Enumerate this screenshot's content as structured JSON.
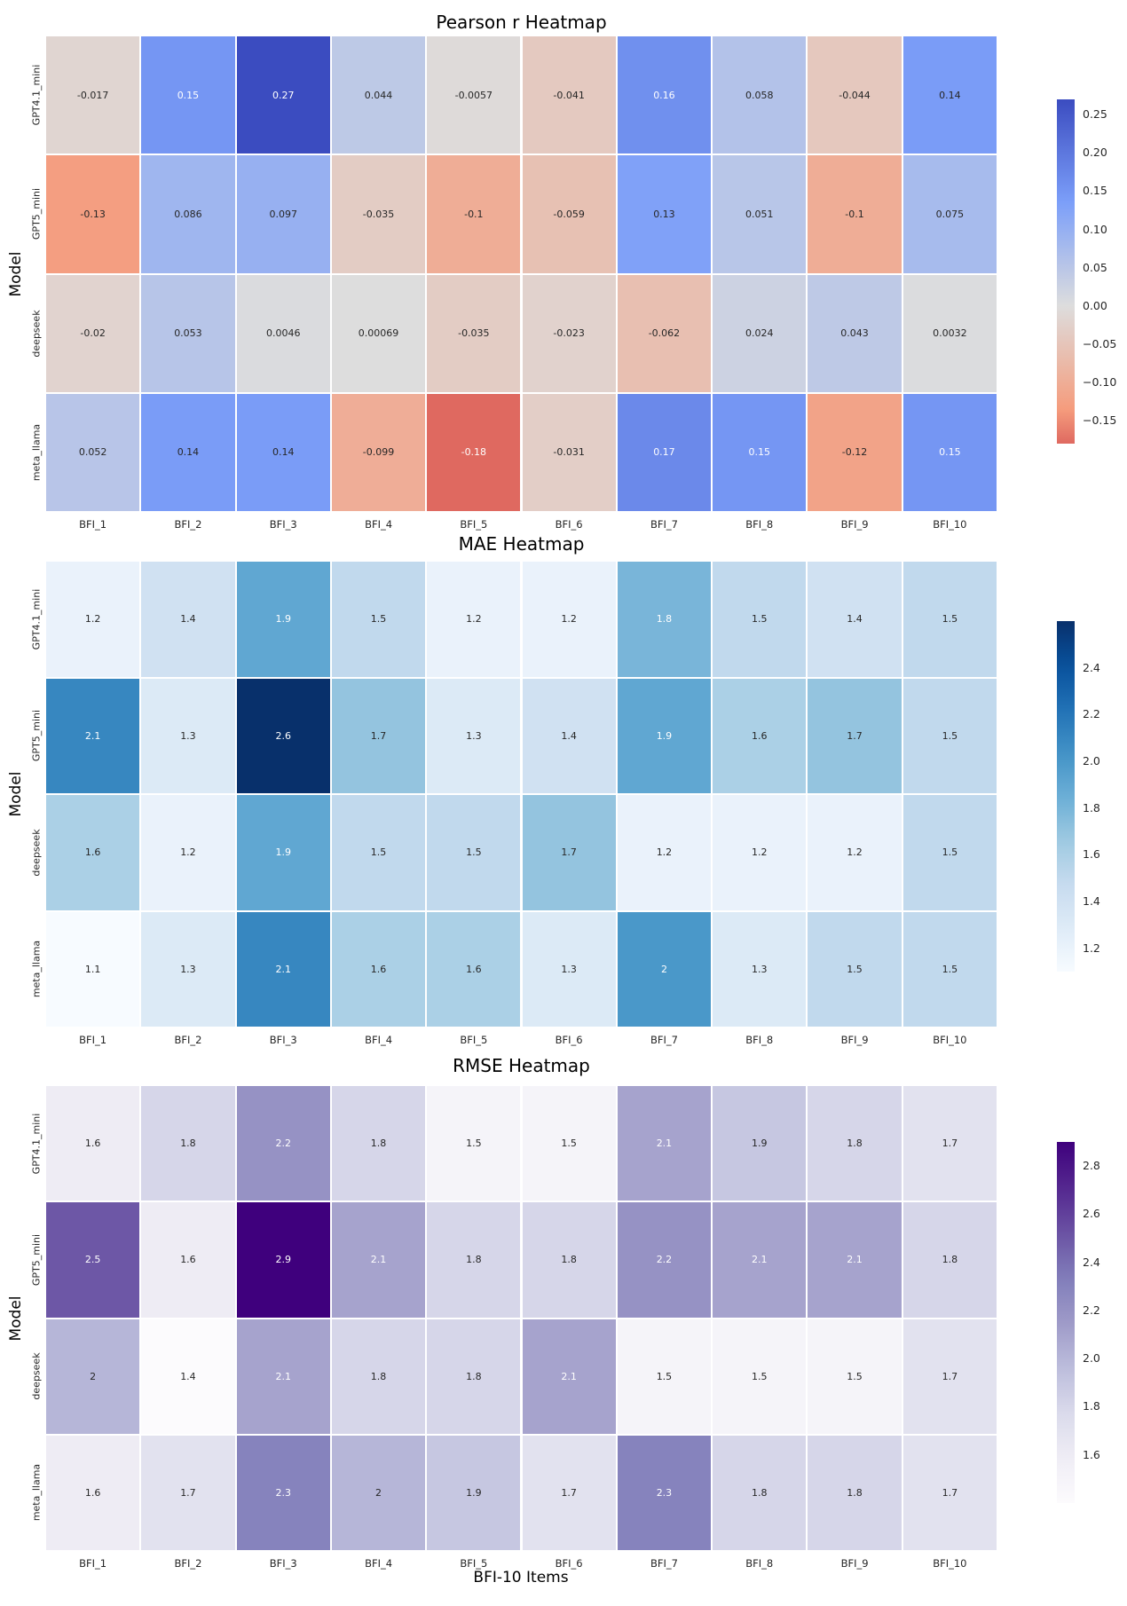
{
  "figure": {
    "ylabel": "Model",
    "xlabel": "BFI-10 Items",
    "models": [
      "GPT4.1_mini",
      "GPT5_mini",
      "deepseek",
      "meta_llama"
    ],
    "items": [
      "BFI_1",
      "BFI_2",
      "BFI_3",
      "BFI_4",
      "BFI_5",
      "BFI_6",
      "BFI_7",
      "BFI_8",
      "BFI_9",
      "BFI_10"
    ]
  },
  "chart_data": [
    {
      "type": "heatmap",
      "title": "Pearson r Heatmap",
      "rows": [
        "GPT4.1_mini",
        "GPT5_mini",
        "deepseek",
        "meta_llama"
      ],
      "columns": [
        "BFI_1",
        "BFI_2",
        "BFI_3",
        "BFI_4",
        "BFI_5",
        "BFI_6",
        "BFI_7",
        "BFI_8",
        "BFI_9",
        "BFI_10"
      ],
      "values": [
        [
          -0.017,
          0.15,
          0.27,
          0.044,
          -0.0057,
          -0.041,
          0.16,
          0.058,
          -0.044,
          0.14
        ],
        [
          -0.13,
          0.086,
          0.097,
          -0.035,
          -0.1,
          -0.059,
          0.13,
          0.051,
          -0.1,
          0.075
        ],
        [
          -0.02,
          0.053,
          0.0046,
          0.00069,
          -0.035,
          -0.023,
          -0.062,
          0.024,
          0.043,
          0.0032
        ],
        [
          0.052,
          0.14,
          0.14,
          -0.099,
          -0.18,
          -0.031,
          0.17,
          0.15,
          -0.12,
          0.15
        ]
      ],
      "labels": [
        [
          "-0.017",
          "0.15",
          "0.27",
          "0.044",
          "-0.0057",
          "-0.041",
          "0.16",
          "0.058",
          "-0.044",
          "0.14"
        ],
        [
          "-0.13",
          "0.086",
          "0.097",
          "-0.035",
          "-0.1",
          "-0.059",
          "0.13",
          "0.051",
          "-0.1",
          "0.075"
        ],
        [
          "-0.02",
          "0.053",
          "0.0046",
          "0.00069",
          "-0.035",
          "-0.023",
          "-0.062",
          "0.024",
          "0.043",
          "0.0032"
        ],
        [
          "0.052",
          "0.14",
          "0.14",
          "-0.099",
          "-0.18",
          "-0.031",
          "0.17",
          "0.15",
          "-0.12",
          "0.15"
        ]
      ],
      "colormap": "coolwarm_r",
      "center": 0,
      "vmin": -0.18,
      "vmax": 0.27,
      "colorbar_ticks": [
        "0.25",
        "0.20",
        "0.15",
        "0.10",
        "0.05",
        "0.00",
        "−0.05",
        "−0.10",
        "−0.15"
      ]
    },
    {
      "type": "heatmap",
      "title": "MAE Heatmap",
      "rows": [
        "GPT4.1_mini",
        "GPT5_mini",
        "deepseek",
        "meta_llama"
      ],
      "columns": [
        "BFI_1",
        "BFI_2",
        "BFI_3",
        "BFI_4",
        "BFI_5",
        "BFI_6",
        "BFI_7",
        "BFI_8",
        "BFI_9",
        "BFI_10"
      ],
      "values": [
        [
          1.2,
          1.4,
          1.9,
          1.5,
          1.2,
          1.2,
          1.8,
          1.5,
          1.4,
          1.5
        ],
        [
          2.1,
          1.3,
          2.6,
          1.7,
          1.3,
          1.4,
          1.9,
          1.6,
          1.7,
          1.5
        ],
        [
          1.6,
          1.2,
          1.9,
          1.5,
          1.5,
          1.7,
          1.2,
          1.2,
          1.2,
          1.5
        ],
        [
          1.1,
          1.3,
          2.1,
          1.6,
          1.6,
          1.3,
          2,
          1.3,
          1.5,
          1.5
        ]
      ],
      "labels": [
        [
          "1.2",
          "1.4",
          "1.9",
          "1.5",
          "1.2",
          "1.2",
          "1.8",
          "1.5",
          "1.4",
          "1.5"
        ],
        [
          "2.1",
          "1.3",
          "2.6",
          "1.7",
          "1.3",
          "1.4",
          "1.9",
          "1.6",
          "1.7",
          "1.5"
        ],
        [
          "1.6",
          "1.2",
          "1.9",
          "1.5",
          "1.5",
          "1.7",
          "1.2",
          "1.2",
          "1.2",
          "1.5"
        ],
        [
          "1.1",
          "1.3",
          "2.1",
          "1.6",
          "1.6",
          "1.3",
          "2",
          "1.3",
          "1.5",
          "1.5"
        ]
      ],
      "colormap": "Blues",
      "center": null,
      "vmin": 1.1,
      "vmax": 2.6,
      "colorbar_ticks": [
        "2.4",
        "2.2",
        "2.0",
        "1.8",
        "1.6",
        "1.4",
        "1.2"
      ]
    },
    {
      "type": "heatmap",
      "title": "RMSE Heatmap",
      "rows": [
        "GPT4.1_mini",
        "GPT5_mini",
        "deepseek",
        "meta_llama"
      ],
      "columns": [
        "BFI_1",
        "BFI_2",
        "BFI_3",
        "BFI_4",
        "BFI_5",
        "BFI_6",
        "BFI_7",
        "BFI_8",
        "BFI_9",
        "BFI_10"
      ],
      "values": [
        [
          1.6,
          1.8,
          2.2,
          1.8,
          1.5,
          1.5,
          2.1,
          1.9,
          1.8,
          1.7
        ],
        [
          2.5,
          1.6,
          2.9,
          2.1,
          1.8,
          1.8,
          2.2,
          2.1,
          2.1,
          1.8
        ],
        [
          2,
          1.4,
          2.1,
          1.8,
          1.8,
          2.1,
          1.5,
          1.5,
          1.5,
          1.7
        ],
        [
          1.6,
          1.7,
          2.3,
          2,
          1.9,
          1.7,
          2.3,
          1.8,
          1.8,
          1.7
        ]
      ],
      "labels": [
        [
          "1.6",
          "1.8",
          "2.2",
          "1.8",
          "1.5",
          "1.5",
          "2.1",
          "1.9",
          "1.8",
          "1.7"
        ],
        [
          "2.5",
          "1.6",
          "2.9",
          "2.1",
          "1.8",
          "1.8",
          "2.2",
          "2.1",
          "2.1",
          "1.8"
        ],
        [
          "2",
          "1.4",
          "2.1",
          "1.8",
          "1.8",
          "2.1",
          "1.5",
          "1.5",
          "1.5",
          "1.7"
        ],
        [
          "1.6",
          "1.7",
          "2.3",
          "2",
          "1.9",
          "1.7",
          "2.3",
          "1.8",
          "1.8",
          "1.7"
        ]
      ],
      "colormap": "Purples",
      "center": null,
      "vmin": 1.4,
      "vmax": 2.9,
      "colorbar_ticks": [
        "2.8",
        "2.6",
        "2.4",
        "2.2",
        "2.0",
        "1.8",
        "1.6"
      ]
    }
  ]
}
